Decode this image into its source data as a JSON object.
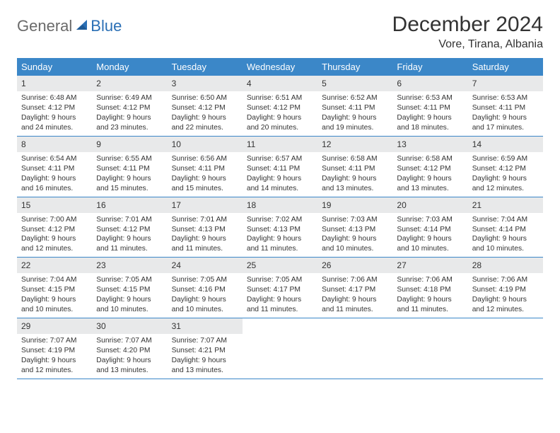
{
  "logo": {
    "part1": "General",
    "part2": "Blue"
  },
  "title": "December 2024",
  "location": "Vore, Tirana, Albania",
  "colors": {
    "header_bg": "#3b87c8",
    "header_text": "#ffffff",
    "daynum_bg": "#e8e9ea",
    "border": "#3b87c8",
    "body_text": "#333333",
    "logo_gray": "#6a6a6a",
    "logo_blue": "#2a6fb5"
  },
  "day_names": [
    "Sunday",
    "Monday",
    "Tuesday",
    "Wednesday",
    "Thursday",
    "Friday",
    "Saturday"
  ],
  "leading_blanks": 0,
  "days": [
    {
      "n": "1",
      "sunrise": "Sunrise: 6:48 AM",
      "sunset": "Sunset: 4:12 PM",
      "daylight": "Daylight: 9 hours and 24 minutes."
    },
    {
      "n": "2",
      "sunrise": "Sunrise: 6:49 AM",
      "sunset": "Sunset: 4:12 PM",
      "daylight": "Daylight: 9 hours and 23 minutes."
    },
    {
      "n": "3",
      "sunrise": "Sunrise: 6:50 AM",
      "sunset": "Sunset: 4:12 PM",
      "daylight": "Daylight: 9 hours and 22 minutes."
    },
    {
      "n": "4",
      "sunrise": "Sunrise: 6:51 AM",
      "sunset": "Sunset: 4:12 PM",
      "daylight": "Daylight: 9 hours and 20 minutes."
    },
    {
      "n": "5",
      "sunrise": "Sunrise: 6:52 AM",
      "sunset": "Sunset: 4:11 PM",
      "daylight": "Daylight: 9 hours and 19 minutes."
    },
    {
      "n": "6",
      "sunrise": "Sunrise: 6:53 AM",
      "sunset": "Sunset: 4:11 PM",
      "daylight": "Daylight: 9 hours and 18 minutes."
    },
    {
      "n": "7",
      "sunrise": "Sunrise: 6:53 AM",
      "sunset": "Sunset: 4:11 PM",
      "daylight": "Daylight: 9 hours and 17 minutes."
    },
    {
      "n": "8",
      "sunrise": "Sunrise: 6:54 AM",
      "sunset": "Sunset: 4:11 PM",
      "daylight": "Daylight: 9 hours and 16 minutes."
    },
    {
      "n": "9",
      "sunrise": "Sunrise: 6:55 AM",
      "sunset": "Sunset: 4:11 PM",
      "daylight": "Daylight: 9 hours and 15 minutes."
    },
    {
      "n": "10",
      "sunrise": "Sunrise: 6:56 AM",
      "sunset": "Sunset: 4:11 PM",
      "daylight": "Daylight: 9 hours and 15 minutes."
    },
    {
      "n": "11",
      "sunrise": "Sunrise: 6:57 AM",
      "sunset": "Sunset: 4:11 PM",
      "daylight": "Daylight: 9 hours and 14 minutes."
    },
    {
      "n": "12",
      "sunrise": "Sunrise: 6:58 AM",
      "sunset": "Sunset: 4:11 PM",
      "daylight": "Daylight: 9 hours and 13 minutes."
    },
    {
      "n": "13",
      "sunrise": "Sunrise: 6:58 AM",
      "sunset": "Sunset: 4:12 PM",
      "daylight": "Daylight: 9 hours and 13 minutes."
    },
    {
      "n": "14",
      "sunrise": "Sunrise: 6:59 AM",
      "sunset": "Sunset: 4:12 PM",
      "daylight": "Daylight: 9 hours and 12 minutes."
    },
    {
      "n": "15",
      "sunrise": "Sunrise: 7:00 AM",
      "sunset": "Sunset: 4:12 PM",
      "daylight": "Daylight: 9 hours and 12 minutes."
    },
    {
      "n": "16",
      "sunrise": "Sunrise: 7:01 AM",
      "sunset": "Sunset: 4:12 PM",
      "daylight": "Daylight: 9 hours and 11 minutes."
    },
    {
      "n": "17",
      "sunrise": "Sunrise: 7:01 AM",
      "sunset": "Sunset: 4:13 PM",
      "daylight": "Daylight: 9 hours and 11 minutes."
    },
    {
      "n": "18",
      "sunrise": "Sunrise: 7:02 AM",
      "sunset": "Sunset: 4:13 PM",
      "daylight": "Daylight: 9 hours and 11 minutes."
    },
    {
      "n": "19",
      "sunrise": "Sunrise: 7:03 AM",
      "sunset": "Sunset: 4:13 PM",
      "daylight": "Daylight: 9 hours and 10 minutes."
    },
    {
      "n": "20",
      "sunrise": "Sunrise: 7:03 AM",
      "sunset": "Sunset: 4:14 PM",
      "daylight": "Daylight: 9 hours and 10 minutes."
    },
    {
      "n": "21",
      "sunrise": "Sunrise: 7:04 AM",
      "sunset": "Sunset: 4:14 PM",
      "daylight": "Daylight: 9 hours and 10 minutes."
    },
    {
      "n": "22",
      "sunrise": "Sunrise: 7:04 AM",
      "sunset": "Sunset: 4:15 PM",
      "daylight": "Daylight: 9 hours and 10 minutes."
    },
    {
      "n": "23",
      "sunrise": "Sunrise: 7:05 AM",
      "sunset": "Sunset: 4:15 PM",
      "daylight": "Daylight: 9 hours and 10 minutes."
    },
    {
      "n": "24",
      "sunrise": "Sunrise: 7:05 AM",
      "sunset": "Sunset: 4:16 PM",
      "daylight": "Daylight: 9 hours and 10 minutes."
    },
    {
      "n": "25",
      "sunrise": "Sunrise: 7:05 AM",
      "sunset": "Sunset: 4:17 PM",
      "daylight": "Daylight: 9 hours and 11 minutes."
    },
    {
      "n": "26",
      "sunrise": "Sunrise: 7:06 AM",
      "sunset": "Sunset: 4:17 PM",
      "daylight": "Daylight: 9 hours and 11 minutes."
    },
    {
      "n": "27",
      "sunrise": "Sunrise: 7:06 AM",
      "sunset": "Sunset: 4:18 PM",
      "daylight": "Daylight: 9 hours and 11 minutes."
    },
    {
      "n": "28",
      "sunrise": "Sunrise: 7:06 AM",
      "sunset": "Sunset: 4:19 PM",
      "daylight": "Daylight: 9 hours and 12 minutes."
    },
    {
      "n": "29",
      "sunrise": "Sunrise: 7:07 AM",
      "sunset": "Sunset: 4:19 PM",
      "daylight": "Daylight: 9 hours and 12 minutes."
    },
    {
      "n": "30",
      "sunrise": "Sunrise: 7:07 AM",
      "sunset": "Sunset: 4:20 PM",
      "daylight": "Daylight: 9 hours and 13 minutes."
    },
    {
      "n": "31",
      "sunrise": "Sunrise: 7:07 AM",
      "sunset": "Sunset: 4:21 PM",
      "daylight": "Daylight: 9 hours and 13 minutes."
    }
  ]
}
